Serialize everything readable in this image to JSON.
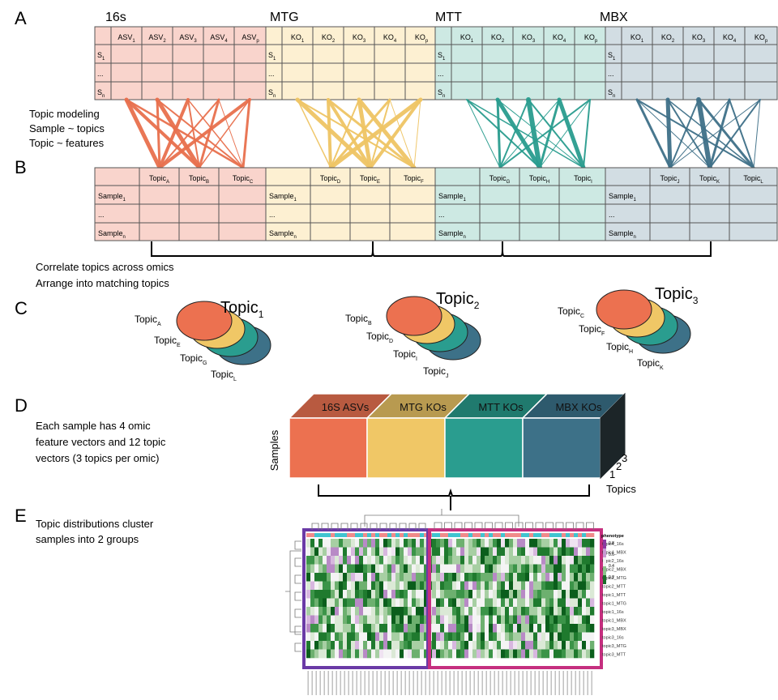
{
  "colors": {
    "s16_fill": "#f9d4cc",
    "s16_line": "#e8704e",
    "mtg_fill": "#fdf0d2",
    "mtg_line": "#efc565",
    "mtt_fill": "#cde9e3",
    "mtt_line": "#2a9d8f",
    "mbx_fill": "#d2dde3",
    "mbx_line": "#3f7088",
    "orange": "#ec7150",
    "yellow": "#f0c766",
    "teal": "#2a9d8f",
    "blue": "#3d7188",
    "purple": "#6a3aa6",
    "magenta": "#c52f7f"
  },
  "panels": {
    "A": "A",
    "B": "B",
    "C": "C",
    "D": "D",
    "E": "E"
  },
  "omics": [
    {
      "key": "s16",
      "title": "16s",
      "features": [
        [
          "ASV",
          "1"
        ],
        [
          "ASV",
          "2"
        ],
        [
          "ASV",
          "3"
        ],
        [
          "ASV",
          "4"
        ],
        [
          "ASV",
          "p"
        ]
      ],
      "samples": [
        [
          "S",
          "1"
        ],
        [
          "...",
          ""
        ],
        [
          "S",
          "n"
        ]
      ],
      "topics": [
        [
          "Topic",
          "A"
        ],
        [
          "Topic",
          "B"
        ],
        [
          "Topic",
          "C"
        ]
      ],
      "topic_samples": [
        [
          "Sample",
          "1"
        ],
        [
          "...",
          ""
        ],
        [
          "Sample",
          "n"
        ]
      ]
    },
    {
      "key": "mtg",
      "title": "MTG",
      "features": [
        [
          "KO",
          "1"
        ],
        [
          "KO",
          "2"
        ],
        [
          "KO",
          "3"
        ],
        [
          "KO",
          "4"
        ],
        [
          "KO",
          "p"
        ]
      ],
      "samples": [
        [
          "S",
          "1"
        ],
        [
          "...",
          ""
        ],
        [
          "S",
          "n"
        ]
      ],
      "topics": [
        [
          "Topic",
          "D"
        ],
        [
          "Topic",
          "E"
        ],
        [
          "Topic",
          "F"
        ]
      ],
      "topic_samples": [
        [
          "Sample",
          "1"
        ],
        [
          "...",
          ""
        ],
        [
          "Sample",
          "n"
        ]
      ]
    },
    {
      "key": "mtt",
      "title": "MTT",
      "features": [
        [
          "KO",
          "1"
        ],
        [
          "KO",
          "2"
        ],
        [
          "KO",
          "3"
        ],
        [
          "KO",
          "4"
        ],
        [
          "KO",
          "p"
        ]
      ],
      "samples": [
        [
          "S",
          "1"
        ],
        [
          "...",
          ""
        ],
        [
          "S",
          "n"
        ]
      ],
      "topics": [
        [
          "Topic",
          "G"
        ],
        [
          "Topic",
          "H"
        ],
        [
          "Topic",
          "I"
        ]
      ],
      "topic_samples": [
        [
          "Sample",
          "1"
        ],
        [
          "...",
          ""
        ],
        [
          "Sample",
          "n"
        ]
      ]
    },
    {
      "key": "mbx",
      "title": "MBX",
      "features": [
        [
          "KO",
          "1"
        ],
        [
          "KO",
          "2"
        ],
        [
          "KO",
          "3"
        ],
        [
          "KO",
          "4"
        ],
        [
          "KO",
          "p"
        ]
      ],
      "samples": [
        [
          "S",
          "1"
        ],
        [
          "...",
          ""
        ],
        [
          "S",
          "n"
        ]
      ],
      "topics": [
        [
          "Topic",
          "J"
        ],
        [
          "Topic",
          "K"
        ],
        [
          "Topic",
          "L"
        ]
      ],
      "topic_samples": [
        [
          "Sample",
          "1"
        ],
        [
          "...",
          ""
        ],
        [
          "Sample",
          "n"
        ]
      ]
    }
  ],
  "topic_modeling": [
    "Topic modeling",
    "Sample ~ topics",
    "Topic ~ features"
  ],
  "correlate": [
    "Correlate topics across omics",
    "Arrange into matching topics"
  ],
  "matched": [
    {
      "title": [
        "Topic",
        "1"
      ],
      "labels": [
        [
          "Topic",
          "A"
        ],
        [
          "Topic",
          "E"
        ],
        [
          "Topic",
          "G"
        ],
        [
          "Topic",
          "L"
        ]
      ]
    },
    {
      "title": [
        "Topic",
        "2"
      ],
      "labels": [
        [
          "Topic",
          "B"
        ],
        [
          "Topic",
          "D"
        ],
        [
          "Topic",
          "I"
        ],
        [
          "Topic",
          "J"
        ]
      ]
    },
    {
      "title": [
        "Topic",
        "3"
      ],
      "labels": [
        [
          "Topic",
          "C"
        ],
        [
          "Topic",
          "F"
        ],
        [
          "Topic",
          "H"
        ],
        [
          "Topic",
          "K"
        ]
      ]
    }
  ],
  "panel_d": {
    "text": [
      "Each sample has 4 omic",
      "feature vectors and 12 topic",
      "vectors (3 topics per omic)"
    ],
    "cubes": [
      "16S ASVs",
      "MTG KOs",
      "MTT KOs",
      "MBX KOs"
    ],
    "samples_label": "Samples",
    "topics_label": "Topics",
    "depth_ticks": [
      "1",
      "2",
      "3"
    ]
  },
  "panel_e": {
    "text": [
      "Topic distributions  cluster",
      "samples into 2 groups"
    ],
    "legend_title": "phenotype",
    "legend_ticks": [
      "0.8",
      "0.6",
      "0.4",
      "0.2"
    ],
    "row_labels": [
      "topic4_16s",
      "topic4_MBX",
      "topic2_16s",
      "topic2_MBX",
      "topic2_MTG",
      "topic2_MTT",
      "topic1_MTT",
      "topic1_MTG",
      "topic1_16s",
      "topic1_MBX",
      "topic3_MBX",
      "topic3_16s",
      "topic3_MTG",
      "topic3_MTT"
    ]
  }
}
